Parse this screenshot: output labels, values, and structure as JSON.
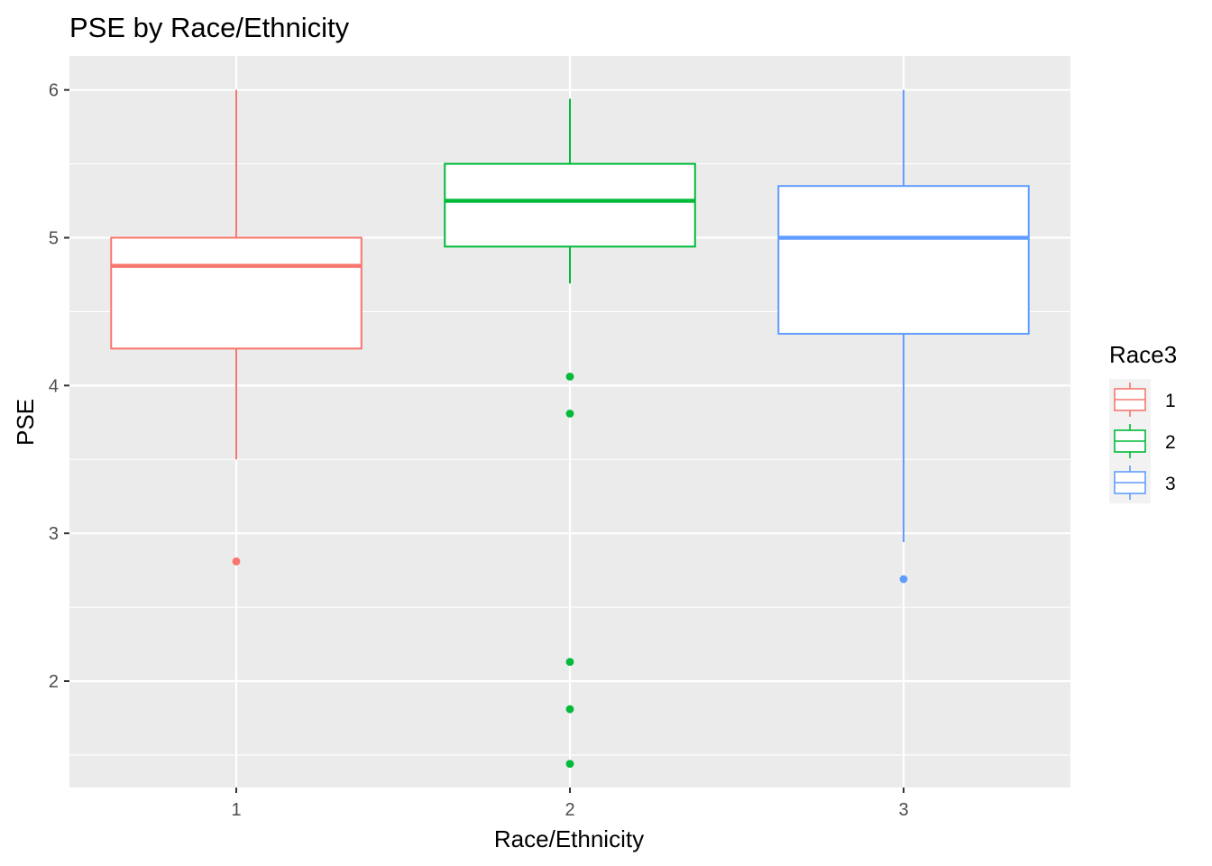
{
  "chart_data": {
    "type": "boxplot",
    "title": "PSE by Race/Ethnicity",
    "xlabel": "Race/Ethnicity",
    "ylabel": "PSE",
    "categories": [
      "1",
      "2",
      "3"
    ],
    "ylim": [
      1.28,
      6.23
    ],
    "yticks": [
      2,
      3,
      4,
      5,
      6
    ],
    "yticklabels": [
      "2",
      "3",
      "4",
      "5",
      "6"
    ],
    "grid": true,
    "background": "#ebebeb",
    "boxes": [
      {
        "category": "1",
        "color": "#f8766d",
        "lower_whisker": 3.5,
        "q1": 4.25,
        "median": 4.81,
        "q3": 5.0,
        "upper_whisker": 6.0,
        "outliers": [
          2.81
        ]
      },
      {
        "category": "2",
        "color": "#00ba38",
        "lower_whisker": 4.69,
        "q1": 4.94,
        "median": 5.25,
        "q3": 5.5,
        "upper_whisker": 5.94,
        "outliers": [
          4.06,
          3.81,
          2.13,
          1.81,
          1.44
        ]
      },
      {
        "category": "3",
        "color": "#619cff",
        "lower_whisker": 2.94,
        "q1": 4.35,
        "median": 5.0,
        "q3": 5.35,
        "upper_whisker": 6.0,
        "outliers": [
          2.69
        ]
      }
    ],
    "legend": {
      "title": "Race3",
      "position": "right",
      "items": [
        {
          "label": "1",
          "color": "#f8766d"
        },
        {
          "label": "2",
          "color": "#00ba38"
        },
        {
          "label": "3",
          "color": "#619cff"
        }
      ]
    }
  }
}
